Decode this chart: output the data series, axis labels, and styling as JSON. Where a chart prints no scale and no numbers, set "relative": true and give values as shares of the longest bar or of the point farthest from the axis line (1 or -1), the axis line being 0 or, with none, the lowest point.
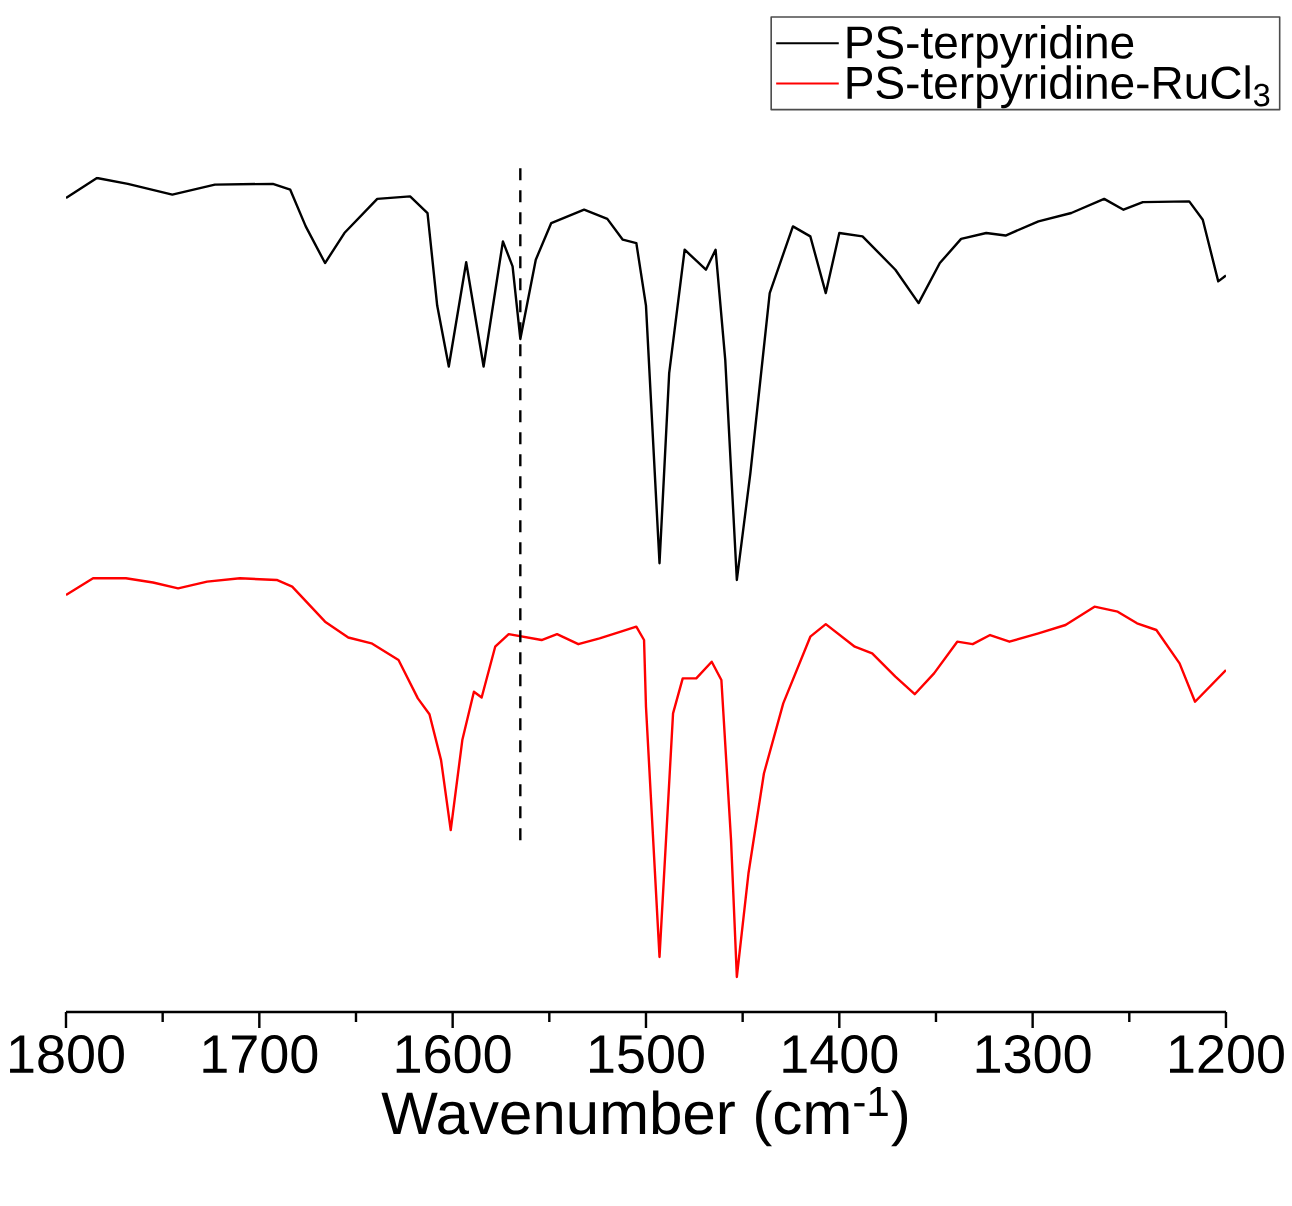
{
  "chart_data": {
    "type": "line",
    "relative": true,
    "xlabel": "Wavenumber (cm$^{-1}$)",
    "xlim": [
      1800,
      1200
    ],
    "xticks": [
      1800,
      1700,
      1600,
      1500,
      1400,
      1300,
      1200
    ],
    "legend": "top right",
    "marker": "none",
    "line_style": "solid",
    "series": [
      {
        "name": "PS-terpyridine",
        "color": "#000000",
        "x": [
          1800,
          1784,
          1768,
          1745,
          1723,
          1693,
          1684,
          1676,
          1666,
          1656,
          1639,
          1622,
          1613,
          1608,
          1602,
          1593,
          1584,
          1574,
          1569,
          1565,
          1557,
          1549,
          1532,
          1520,
          1512,
          1505,
          1500,
          1493,
          1488,
          1480,
          1469,
          1464,
          1459,
          1453,
          1446,
          1436,
          1424,
          1415,
          1407,
          1400,
          1388,
          1371,
          1359,
          1348,
          1337,
          1324,
          1314,
          1297,
          1280,
          1263,
          1253,
          1243,
          1219,
          1212,
          1204,
          1200
        ],
        "values": [
          0.976,
          1.0,
          0.993,
          0.98,
          0.992,
          0.993,
          0.986,
          0.942,
          0.898,
          0.934,
          0.975,
          0.978,
          0.958,
          0.847,
          0.774,
          0.899,
          0.774,
          0.924,
          0.894,
          0.807,
          0.902,
          0.946,
          0.962,
          0.951,
          0.926,
          0.922,
          0.847,
          0.538,
          0.766,
          0.914,
          0.89,
          0.914,
          0.782,
          0.518,
          0.646,
          0.862,
          0.942,
          0.93,
          0.862,
          0.934,
          0.93,
          0.89,
          0.85,
          0.898,
          0.927,
          0.934,
          0.931,
          0.948,
          0.958,
          0.975,
          0.962,
          0.971,
          0.972,
          0.95,
          0.876,
          0.883
        ]
      },
      {
        "name": "PS-terpyridine-RuCl$_{3}$",
        "color": "#ff0000",
        "x": [
          1800,
          1786,
          1769,
          1755,
          1742,
          1727,
          1710,
          1691,
          1683,
          1666,
          1654,
          1642,
          1628,
          1618,
          1612,
          1606,
          1601,
          1595,
          1589,
          1585,
          1578,
          1571,
          1554,
          1546,
          1535,
          1524,
          1513,
          1505,
          1501,
          1500,
          1493,
          1486,
          1481,
          1474,
          1466,
          1461,
          1456,
          1453,
          1447,
          1439,
          1429,
          1415,
          1407,
          1392,
          1383,
          1371,
          1361,
          1351,
          1339,
          1331,
          1322,
          1312,
          1297,
          1283,
          1268,
          1256,
          1246,
          1236,
          1224,
          1216,
          1200
        ],
        "values": [
          0.5,
          0.52,
          0.52,
          0.515,
          0.508,
          0.516,
          0.52,
          0.518,
          0.51,
          0.468,
          0.449,
          0.442,
          0.422,
          0.376,
          0.357,
          0.302,
          0.218,
          0.326,
          0.384,
          0.377,
          0.438,
          0.453,
          0.446,
          0.453,
          0.441,
          0.448,
          0.456,
          0.462,
          0.446,
          0.366,
          0.066,
          0.358,
          0.4,
          0.4,
          0.42,
          0.398,
          0.206,
          0.042,
          0.166,
          0.286,
          0.37,
          0.45,
          0.465,
          0.438,
          0.43,
          0.402,
          0.381,
          0.406,
          0.444,
          0.441,
          0.452,
          0.444,
          0.454,
          0.464,
          0.486,
          0.48,
          0.466,
          0.458,
          0.418,
          0.372,
          0.41
        ]
      }
    ],
    "ref_lines": [
      {
        "axis": "x",
        "value": 1565,
        "color": "#000000",
        "line_style": "dashed"
      }
    ]
  }
}
